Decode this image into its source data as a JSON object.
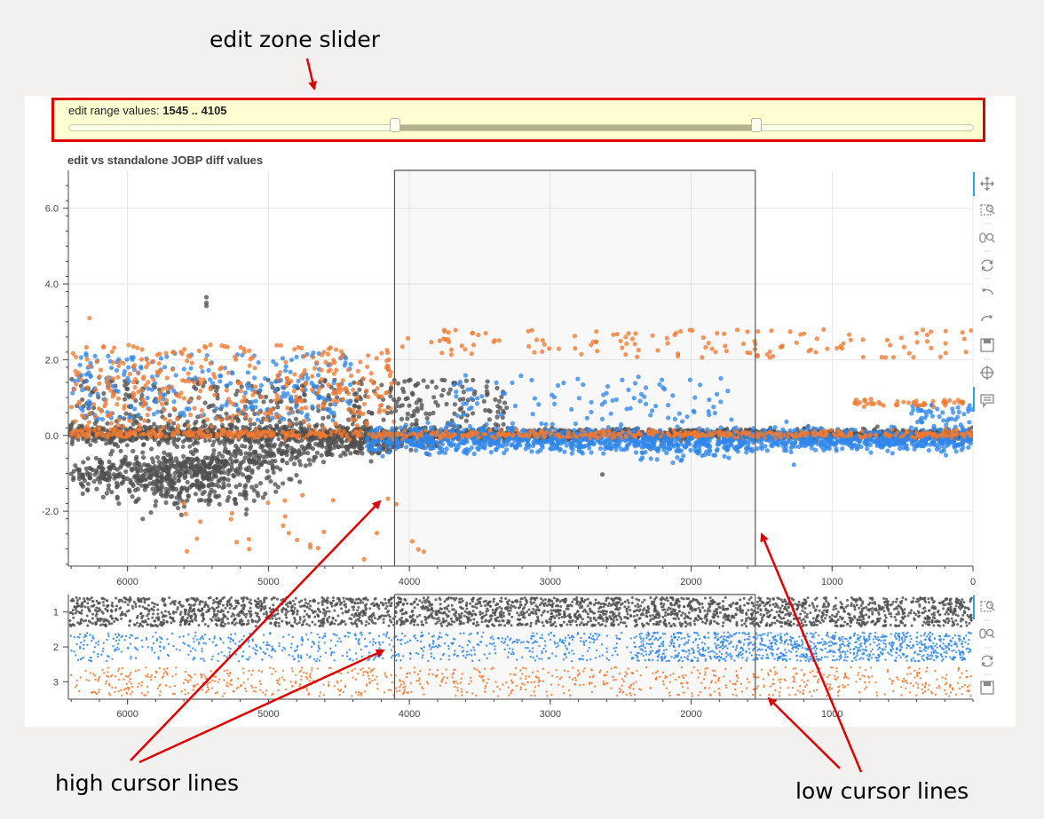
{
  "annotations": {
    "slider_note": "edit zone slider",
    "high_note": "high cursor lines",
    "low_note": "low cursor lines"
  },
  "slider": {
    "label": "edit range values:",
    "value_text": "1545 .. 4105",
    "start": 0,
    "end": 6420,
    "low": 1545,
    "high": 4105,
    "reversed": true
  },
  "chart_data": [
    {
      "type": "scatter",
      "title": "edit vs standalone JOBP diff values",
      "xlim": [
        6420,
        0
      ],
      "ylim": [
        -3.45,
        7.0
      ],
      "x_ticks": [
        6000,
        5000,
        4000,
        3000,
        2000,
        1000,
        0
      ],
      "y_ticks": [
        6.0,
        4.0,
        2.0,
        0.0,
        -2.0
      ],
      "grid": true,
      "selection_band": [
        1545,
        4105
      ],
      "series": [
        {
          "color": "#505050",
          "y_center": 0.0,
          "approx_points": 3200
        },
        {
          "color": "#2f86ea",
          "y_center": 0.0,
          "approx_points": 1800
        },
        {
          "color": "#f07a32",
          "y_center": 0.0,
          "approx_points": 900
        }
      ]
    },
    {
      "type": "scatter",
      "xlim": [
        6420,
        0
      ],
      "ylim": [
        3.5,
        0.5
      ],
      "x_ticks": [
        6000,
        5000,
        4000,
        3000,
        2000,
        1000
      ],
      "y_ticks": [
        1,
        2,
        3
      ],
      "grid": false,
      "selection_band": [
        1545,
        4105
      ],
      "series": [
        {
          "color": "#505050",
          "y_center": 1,
          "jitter": 0.45
        },
        {
          "color": "#2f86ea",
          "y_center": 2,
          "jitter": 0.45
        },
        {
          "color": "#f07a32",
          "y_center": 3,
          "jitter": 0.45
        }
      ]
    }
  ],
  "toolbar_main": [
    "pan-icon",
    "box-zoom-icon",
    "wheel-zoom-icon",
    "reset-icon",
    "undo-icon",
    "redo-icon",
    "save-icon",
    "crosshair-icon",
    "hover-icon"
  ],
  "toolbar_small": [
    "box-zoom-icon",
    "wheel-zoom-icon",
    "reset-icon",
    "save-icon"
  ]
}
